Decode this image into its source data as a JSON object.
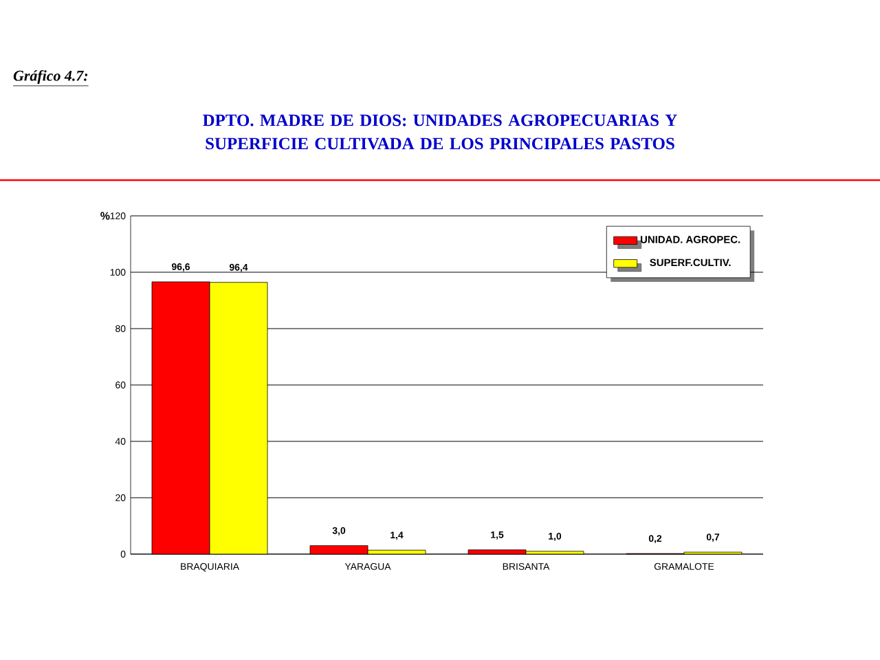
{
  "chart_data": {
    "type": "bar",
    "title": "DPTO. MADRE DE DIOS: UNIDADES AGROPECUARIAS Y SUPERFICIE CULTIVADA DE LOS PRINCIPALES PASTOS",
    "annotations": [
      "Gráfico 4.7:"
    ],
    "ylabel": "%",
    "categories": [
      "BRAQUIARIA",
      "YARAGUA",
      "BRISANTA",
      "GRAMALOTE"
    ],
    "series": [
      {
        "name": "UNIDAD. AGROPEC.",
        "color": "#ff0000",
        "values": [
          96.6,
          3.0,
          1.5,
          0.2
        ],
        "value_labels": [
          "96,6",
          "3,0",
          "1,5",
          "0,2"
        ]
      },
      {
        "name": "SUPERF.CULTIV.",
        "color": "#ffff00",
        "values": [
          96.4,
          1.4,
          1.0,
          0.7
        ],
        "value_labels": [
          "96,4",
          "1,4",
          "1,0",
          "0,7"
        ]
      }
    ],
    "ylim": [
      0,
      120
    ],
    "yticks": [
      0,
      20,
      40,
      60,
      80,
      100,
      120
    ],
    "grid": "y",
    "legend": "top right"
  }
}
